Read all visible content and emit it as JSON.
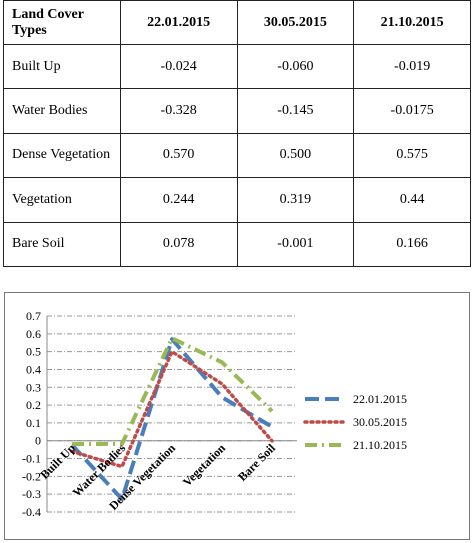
{
  "table": {
    "headers": [
      "Land Cover Types",
      "22.01.2015",
      "30.05.2015",
      "21.10.2015"
    ],
    "rows": [
      [
        "Built Up",
        "-0.024",
        "-0.060",
        "-0.019"
      ],
      [
        "Water Bodies",
        "-0.328",
        "-0.145",
        "-0.0175"
      ],
      [
        "Dense Vegetation",
        "0.570",
        "0.500",
        "0.575"
      ],
      [
        "Vegetation",
        "0.244",
        "0.319",
        "0.44"
      ],
      [
        "Bare Soil",
        "0.078",
        "-0.001",
        "0.166"
      ]
    ]
  },
  "chart_data": {
    "type": "line",
    "categories": [
      "Built Up",
      "Water Bodies",
      "Dense Vegetation",
      "Vegetation",
      "Bare Soil"
    ],
    "series": [
      {
        "name": "22.01.2015",
        "values": [
          -0.024,
          -0.328,
          0.57,
          0.244,
          0.078
        ],
        "color": "#4a7ebb",
        "style": "dash"
      },
      {
        "name": "30.05.2015",
        "values": [
          -0.06,
          -0.145,
          0.5,
          0.319,
          -0.001
        ],
        "color": "#be4b48",
        "style": "dot"
      },
      {
        "name": "21.10.2015",
        "values": [
          -0.019,
          -0.0175,
          0.575,
          0.44,
          0.166
        ],
        "color": "#98b954",
        "style": "dashdot"
      }
    ],
    "ylim": [
      -0.4,
      0.7
    ],
    "yticks": [
      "0.7",
      "0.6",
      "0.5",
      "0.4",
      "0.3",
      "0.2",
      "0.1",
      "0",
      "-0.1",
      "-0.2",
      "-0.3",
      "-0.4"
    ],
    "grid": true,
    "legend": "right"
  }
}
